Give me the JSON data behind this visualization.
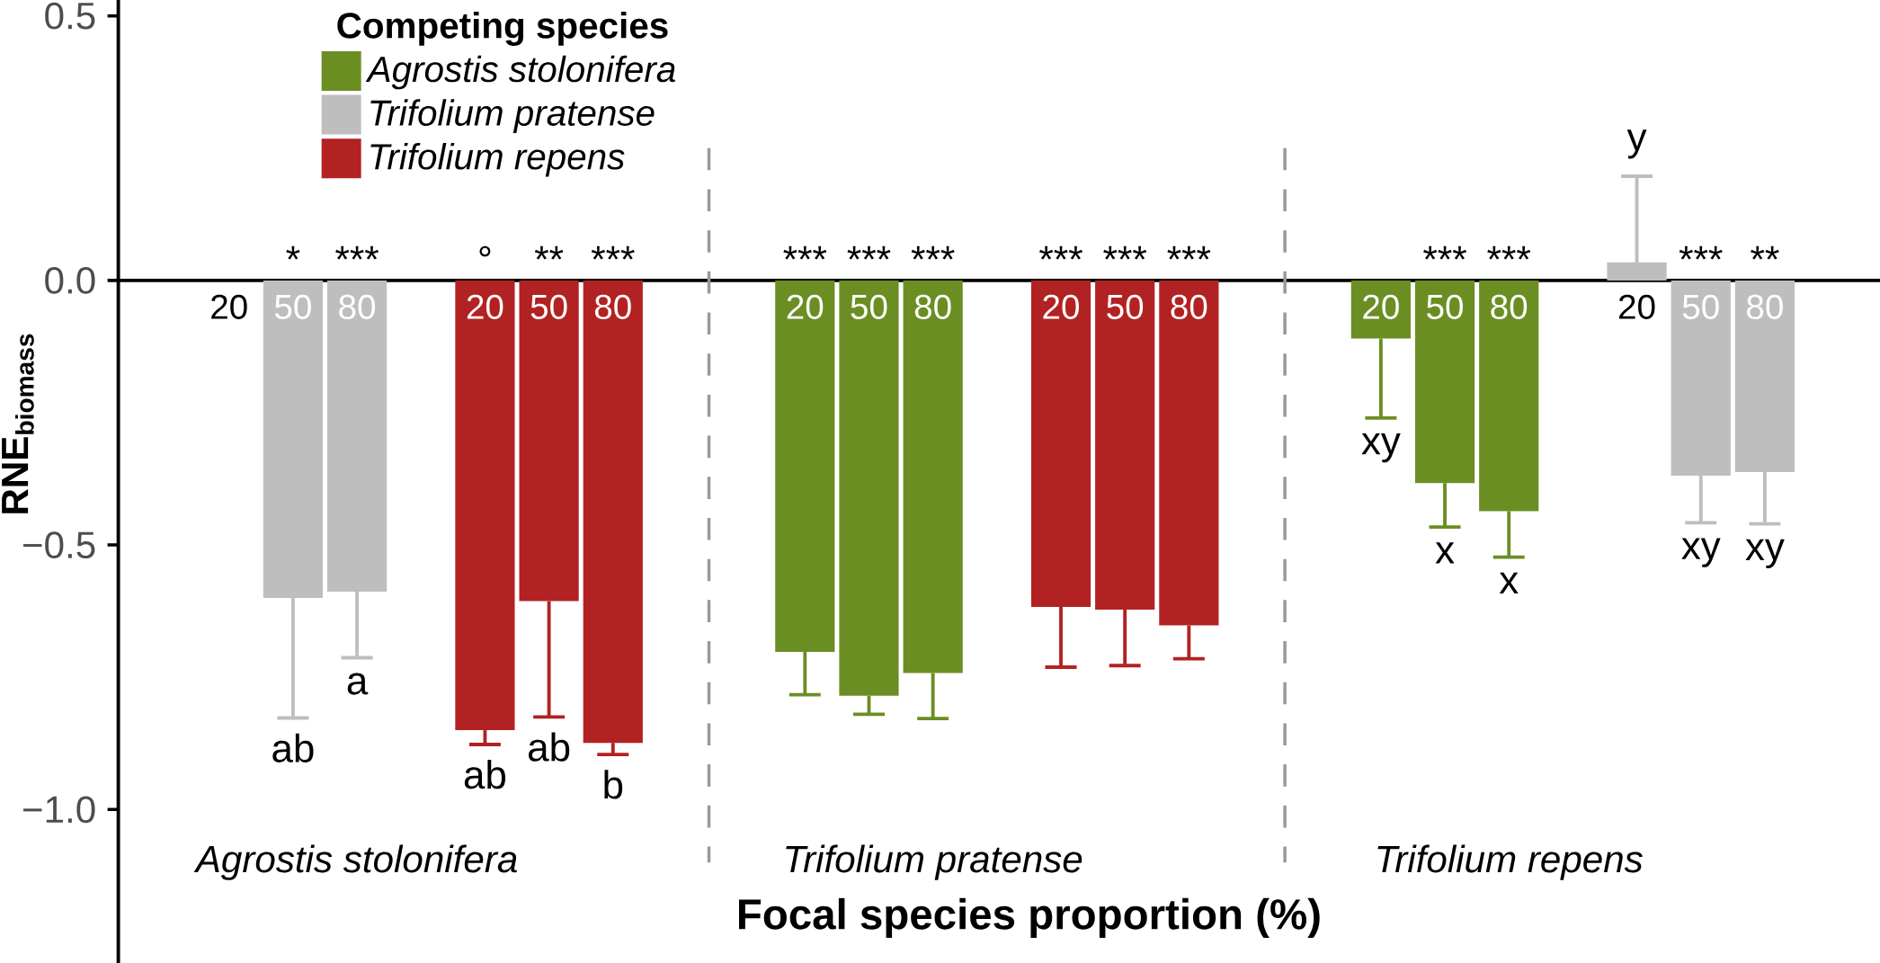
{
  "chart_data": {
    "type": "bar",
    "xlabel": "Focal species proportion (%)",
    "ylabel": "RNE$_{biomass}$",
    "legend_title": "Competing species",
    "legend": "top left",
    "categories": [
      "20",
      "50",
      "80",
      "20",
      "50",
      "80",
      "20",
      "50",
      "80",
      "20",
      "50",
      "80",
      "20",
      "50",
      "80",
      "20",
      "50",
      "80"
    ],
    "ylim": [
      -1.29,
      0.53
    ],
    "yticks": [
      {
        "value": -1.0,
        "label": "−1.0"
      },
      {
        "value": -0.5,
        "label": "−0.5"
      },
      {
        "value": 0.0,
        "label": "0.0"
      },
      {
        "value": 0.5,
        "label": "0.5"
      }
    ],
    "series": [
      {
        "name": "*Agrostis stolonifera*",
        "color": "#6b8e23",
        "values": [
          null,
          null,
          null,
          null,
          null,
          null,
          -0.702,
          -0.785,
          -0.742,
          null,
          null,
          null,
          -0.11,
          -0.383,
          -0.436,
          null,
          null,
          null
        ],
        "errors": [
          null,
          null,
          null,
          null,
          null,
          null,
          [
            -0.783,
            -0.702
          ],
          [
            -0.82,
            -0.785
          ],
          [
            -0.828,
            -0.742
          ],
          null,
          null,
          null,
          [
            -0.26,
            -0.11
          ],
          [
            -0.466,
            -0.383
          ],
          [
            -0.523,
            -0.436
          ],
          null,
          null,
          null
        ]
      },
      {
        "name": "*Trifolium pratense*",
        "color": "#bebebe",
        "values": [
          null,
          -0.6,
          -0.588,
          null,
          null,
          null,
          null,
          null,
          null,
          null,
          null,
          null,
          null,
          null,
          null,
          0.034,
          -0.369,
          -0.362
        ],
        "errors": [
          null,
          [
            -0.827,
            -0.6
          ],
          [
            -0.713,
            -0.588
          ],
          null,
          null,
          null,
          null,
          null,
          null,
          null,
          null,
          null,
          null,
          null,
          null,
          [
            0.034,
            0.197
          ],
          [
            -0.458,
            -0.369
          ],
          [
            -0.46,
            -0.362
          ]
        ]
      },
      {
        "name": "*Trifolium repens*",
        "color": "#b22222",
        "values": [
          null,
          null,
          null,
          -0.85,
          -0.606,
          -0.874,
          null,
          null,
          null,
          -0.617,
          -0.622,
          -0.652,
          null,
          null,
          null,
          null,
          null,
          null
        ],
        "errors": [
          null,
          null,
          null,
          [
            -0.877,
            -0.85
          ],
          [
            -0.825,
            -0.606
          ],
          [
            -0.896,
            -0.874
          ],
          null,
          null,
          null,
          [
            -0.731,
            -0.617
          ],
          [
            -0.728,
            -0.622
          ],
          [
            -0.715,
            -0.652
          ],
          null,
          null,
          null,
          null,
          null,
          null
        ]
      }
    ],
    "annotations": [
      "*",
      "***",
      "°",
      "**",
      "***",
      "***",
      "***",
      "***",
      "***",
      "***",
      "***",
      "***",
      "***",
      "***",
      "**",
      "ab",
      "a",
      "ab",
      "ab",
      "b",
      "xy",
      "x",
      "x",
      "y",
      "xy",
      "xy",
      "*Agrostis stolonifera*",
      "*Trifolium pratense*",
      "*Trifolium repens*"
    ]
  }
}
